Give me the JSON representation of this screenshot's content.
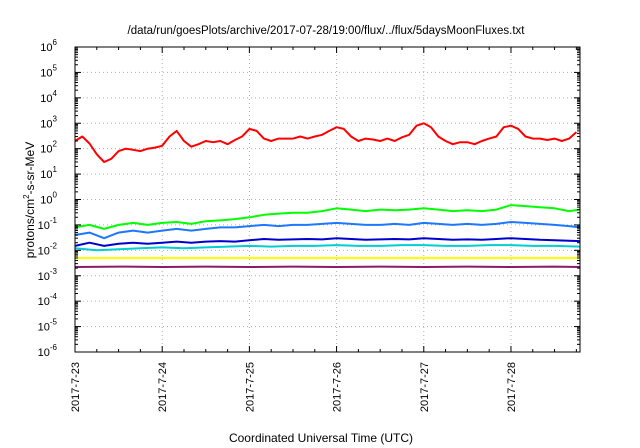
{
  "chart_data": {
    "type": "line",
    "title": "/data/run/goesPlots/archive/2017-07-28/19:00/flux/../flux/5daysMoonFluxes.txt",
    "xlabel": "Coordinated Universal Time (UTC)",
    "ylabel": {
      "prefix": "protons/cm",
      "sup": "2",
      "suffix": "-s-sr-MeV"
    },
    "yscale": "log",
    "ylim": [
      1e-06,
      1000000.0
    ],
    "y_ticks": [
      {
        "base": "10",
        "exp": "-6",
        "value": 1e-06
      },
      {
        "base": "10",
        "exp": "-5",
        "value": 1e-05
      },
      {
        "base": "10",
        "exp": "-4",
        "value": 0.0001
      },
      {
        "base": "10",
        "exp": "-3",
        "value": 0.001
      },
      {
        "base": "10",
        "exp": "-2",
        "value": 0.01
      },
      {
        "base": "10",
        "exp": "-1",
        "value": 0.1
      },
      {
        "base": "10",
        "exp": "0",
        "value": 1
      },
      {
        "base": "10",
        "exp": "1",
        "value": 10
      },
      {
        "base": "10",
        "exp": "2",
        "value": 100
      },
      {
        "base": "10",
        "exp": "3",
        "value": 1000
      },
      {
        "base": "10",
        "exp": "4",
        "value": 10000
      },
      {
        "base": "10",
        "exp": "5",
        "value": 100000
      },
      {
        "base": "10",
        "exp": "6",
        "value": 1000000
      }
    ],
    "x_range": [
      "2017-07-23T00:00",
      "2017-07-28T19:00"
    ],
    "x_ticks": [
      "2017-7-23",
      "2017-7-24",
      "2017-7-25",
      "2017-7-26",
      "2017-7-27",
      "2017-7-28"
    ],
    "grid": true,
    "legend": "none",
    "series": [
      {
        "color": "#ff0000",
        "points": [
          [
            "2017-07-23T00:00",
            200
          ],
          [
            "2017-07-23T02:00",
            300
          ],
          [
            "2017-07-23T04:00",
            160
          ],
          [
            "2017-07-23T06:00",
            60
          ],
          [
            "2017-07-23T08:00",
            30
          ],
          [
            "2017-07-23T10:00",
            40
          ],
          [
            "2017-07-23T12:00",
            80
          ],
          [
            "2017-07-23T14:00",
            100
          ],
          [
            "2017-07-23T16:00",
            90
          ],
          [
            "2017-07-23T18:00",
            80
          ],
          [
            "2017-07-23T20:00",
            100
          ],
          [
            "2017-07-23T22:00",
            110
          ],
          [
            "2017-07-24T00:00",
            130
          ],
          [
            "2017-07-24T02:00",
            300
          ],
          [
            "2017-07-24T04:00",
            500
          ],
          [
            "2017-07-24T06:00",
            200
          ],
          [
            "2017-07-24T08:00",
            120
          ],
          [
            "2017-07-24T10:00",
            150
          ],
          [
            "2017-07-24T12:00",
            200
          ],
          [
            "2017-07-24T14:00",
            180
          ],
          [
            "2017-07-24T16:00",
            200
          ],
          [
            "2017-07-24T18:00",
            150
          ],
          [
            "2017-07-24T20:00",
            220
          ],
          [
            "2017-07-24T22:00",
            300
          ],
          [
            "2017-07-25T00:00",
            600
          ],
          [
            "2017-07-25T02:00",
            500
          ],
          [
            "2017-07-25T04:00",
            250
          ],
          [
            "2017-07-25T06:00",
            200
          ],
          [
            "2017-07-25T08:00",
            250
          ],
          [
            "2017-07-25T10:00",
            250
          ],
          [
            "2017-07-25T12:00",
            250
          ],
          [
            "2017-07-25T14:00",
            300
          ],
          [
            "2017-07-25T16:00",
            250
          ],
          [
            "2017-07-25T18:00",
            300
          ],
          [
            "2017-07-25T20:00",
            350
          ],
          [
            "2017-07-25T22:00",
            500
          ],
          [
            "2017-07-26T00:00",
            700
          ],
          [
            "2017-07-26T02:00",
            600
          ],
          [
            "2017-07-26T04:00",
            300
          ],
          [
            "2017-07-26T06:00",
            200
          ],
          [
            "2017-07-26T08:00",
            250
          ],
          [
            "2017-07-26T10:00",
            230
          ],
          [
            "2017-07-26T12:00",
            200
          ],
          [
            "2017-07-26T14:00",
            250
          ],
          [
            "2017-07-26T16:00",
            200
          ],
          [
            "2017-07-26T18:00",
            280
          ],
          [
            "2017-07-26T20:00",
            350
          ],
          [
            "2017-07-26T22:00",
            800
          ],
          [
            "2017-07-27T00:00",
            1000
          ],
          [
            "2017-07-27T02:00",
            700
          ],
          [
            "2017-07-27T04:00",
            300
          ],
          [
            "2017-07-27T06:00",
            200
          ],
          [
            "2017-07-27T08:00",
            150
          ],
          [
            "2017-07-27T10:00",
            180
          ],
          [
            "2017-07-27T12:00",
            180
          ],
          [
            "2017-07-27T14:00",
            150
          ],
          [
            "2017-07-27T16:00",
            200
          ],
          [
            "2017-07-27T18:00",
            250
          ],
          [
            "2017-07-27T20:00",
            300
          ],
          [
            "2017-07-27T22:00",
            700
          ],
          [
            "2017-07-28T00:00",
            800
          ],
          [
            "2017-07-28T02:00",
            600
          ],
          [
            "2017-07-28T04:00",
            300
          ],
          [
            "2017-07-28T06:00",
            250
          ],
          [
            "2017-07-28T08:00",
            250
          ],
          [
            "2017-07-28T10:00",
            220
          ],
          [
            "2017-07-28T12:00",
            250
          ],
          [
            "2017-07-28T14:00",
            200
          ],
          [
            "2017-07-28T16:00",
            250
          ],
          [
            "2017-07-28T18:00",
            450
          ]
        ]
      },
      {
        "color": "#00ff00",
        "points": [
          [
            "2017-07-23T00:00",
            0.08
          ],
          [
            "2017-07-23T04:00",
            0.1
          ],
          [
            "2017-07-23T08:00",
            0.07
          ],
          [
            "2017-07-23T12:00",
            0.1
          ],
          [
            "2017-07-23T16:00",
            0.12
          ],
          [
            "2017-07-23T20:00",
            0.1
          ],
          [
            "2017-07-24T00:00",
            0.12
          ],
          [
            "2017-07-24T04:00",
            0.13
          ],
          [
            "2017-07-24T08:00",
            0.11
          ],
          [
            "2017-07-24T12:00",
            0.14
          ],
          [
            "2017-07-24T16:00",
            0.15
          ],
          [
            "2017-07-24T20:00",
            0.17
          ],
          [
            "2017-07-25T00:00",
            0.2
          ],
          [
            "2017-07-25T04:00",
            0.25
          ],
          [
            "2017-07-25T08:00",
            0.28
          ],
          [
            "2017-07-25T12:00",
            0.3
          ],
          [
            "2017-07-25T16:00",
            0.3
          ],
          [
            "2017-07-25T20:00",
            0.35
          ],
          [
            "2017-07-26T00:00",
            0.45
          ],
          [
            "2017-07-26T04:00",
            0.4
          ],
          [
            "2017-07-26T08:00",
            0.35
          ],
          [
            "2017-07-26T12:00",
            0.4
          ],
          [
            "2017-07-26T16:00",
            0.38
          ],
          [
            "2017-07-26T20:00",
            0.4
          ],
          [
            "2017-07-27T00:00",
            0.45
          ],
          [
            "2017-07-27T04:00",
            0.4
          ],
          [
            "2017-07-27T08:00",
            0.35
          ],
          [
            "2017-07-27T12:00",
            0.38
          ],
          [
            "2017-07-27T16:00",
            0.35
          ],
          [
            "2017-07-27T20:00",
            0.4
          ],
          [
            "2017-07-28T00:00",
            0.6
          ],
          [
            "2017-07-28T04:00",
            0.55
          ],
          [
            "2017-07-28T08:00",
            0.5
          ],
          [
            "2017-07-28T12:00",
            0.45
          ],
          [
            "2017-07-28T16:00",
            0.35
          ],
          [
            "2017-07-28T19:00",
            0.4
          ]
        ]
      },
      {
        "color": "#1e78ff",
        "points": [
          [
            "2017-07-23T00:00",
            0.04
          ],
          [
            "2017-07-23T04:00",
            0.05
          ],
          [
            "2017-07-23T08:00",
            0.03
          ],
          [
            "2017-07-23T12:00",
            0.05
          ],
          [
            "2017-07-23T16:00",
            0.06
          ],
          [
            "2017-07-23T20:00",
            0.05
          ],
          [
            "2017-07-24T00:00",
            0.06
          ],
          [
            "2017-07-24T04:00",
            0.07
          ],
          [
            "2017-07-24T08:00",
            0.06
          ],
          [
            "2017-07-24T12:00",
            0.07
          ],
          [
            "2017-07-24T16:00",
            0.08
          ],
          [
            "2017-07-24T20:00",
            0.08
          ],
          [
            "2017-07-25T00:00",
            0.09
          ],
          [
            "2017-07-25T04:00",
            0.1
          ],
          [
            "2017-07-25T08:00",
            0.09
          ],
          [
            "2017-07-25T12:00",
            0.1
          ],
          [
            "2017-07-25T16:00",
            0.1
          ],
          [
            "2017-07-25T20:00",
            0.11
          ],
          [
            "2017-07-26T00:00",
            0.12
          ],
          [
            "2017-07-26T04:00",
            0.11
          ],
          [
            "2017-07-26T08:00",
            0.1
          ],
          [
            "2017-07-26T12:00",
            0.1
          ],
          [
            "2017-07-26T16:00",
            0.11
          ],
          [
            "2017-07-26T20:00",
            0.1
          ],
          [
            "2017-07-27T00:00",
            0.12
          ],
          [
            "2017-07-27T04:00",
            0.11
          ],
          [
            "2017-07-27T08:00",
            0.1
          ],
          [
            "2017-07-27T12:00",
            0.11
          ],
          [
            "2017-07-27T16:00",
            0.1
          ],
          [
            "2017-07-27T20:00",
            0.11
          ],
          [
            "2017-07-28T00:00",
            0.13
          ],
          [
            "2017-07-28T04:00",
            0.12
          ],
          [
            "2017-07-28T08:00",
            0.11
          ],
          [
            "2017-07-28T12:00",
            0.1
          ],
          [
            "2017-07-28T16:00",
            0.09
          ],
          [
            "2017-07-28T19:00",
            0.08
          ]
        ]
      },
      {
        "color": "#0000cd",
        "points": [
          [
            "2017-07-23T00:00",
            0.015
          ],
          [
            "2017-07-23T04:00",
            0.02
          ],
          [
            "2017-07-23T08:00",
            0.015
          ],
          [
            "2017-07-23T12:00",
            0.018
          ],
          [
            "2017-07-23T16:00",
            0.02
          ],
          [
            "2017-07-23T20:00",
            0.018
          ],
          [
            "2017-07-24T00:00",
            0.02
          ],
          [
            "2017-07-24T04:00",
            0.022
          ],
          [
            "2017-07-24T08:00",
            0.02
          ],
          [
            "2017-07-24T12:00",
            0.022
          ],
          [
            "2017-07-24T16:00",
            0.023
          ],
          [
            "2017-07-24T20:00",
            0.022
          ],
          [
            "2017-07-25T00:00",
            0.025
          ],
          [
            "2017-07-25T04:00",
            0.028
          ],
          [
            "2017-07-25T08:00",
            0.026
          ],
          [
            "2017-07-25T12:00",
            0.027
          ],
          [
            "2017-07-25T16:00",
            0.028
          ],
          [
            "2017-07-25T20:00",
            0.027
          ],
          [
            "2017-07-26T00:00",
            0.03
          ],
          [
            "2017-07-26T04:00",
            0.028
          ],
          [
            "2017-07-26T08:00",
            0.026
          ],
          [
            "2017-07-26T12:00",
            0.027
          ],
          [
            "2017-07-26T16:00",
            0.028
          ],
          [
            "2017-07-26T20:00",
            0.027
          ],
          [
            "2017-07-27T00:00",
            0.03
          ],
          [
            "2017-07-27T04:00",
            0.028
          ],
          [
            "2017-07-27T08:00",
            0.026
          ],
          [
            "2017-07-27T12:00",
            0.027
          ],
          [
            "2017-07-27T16:00",
            0.026
          ],
          [
            "2017-07-27T20:00",
            0.028
          ],
          [
            "2017-07-28T00:00",
            0.03
          ],
          [
            "2017-07-28T04:00",
            0.028
          ],
          [
            "2017-07-28T08:00",
            0.026
          ],
          [
            "2017-07-28T12:00",
            0.025
          ],
          [
            "2017-07-28T16:00",
            0.024
          ],
          [
            "2017-07-28T19:00",
            0.023
          ]
        ]
      },
      {
        "color": "#00ced1",
        "points": [
          [
            "2017-07-23T00:00",
            0.012
          ],
          [
            "2017-07-23T06:00",
            0.01
          ],
          [
            "2017-07-23T12:00",
            0.011
          ],
          [
            "2017-07-23T18:00",
            0.012
          ],
          [
            "2017-07-24T00:00",
            0.013
          ],
          [
            "2017-07-24T06:00",
            0.012
          ],
          [
            "2017-07-24T12:00",
            0.013
          ],
          [
            "2017-07-24T18:00",
            0.014
          ],
          [
            "2017-07-25T00:00",
            0.015
          ],
          [
            "2017-07-25T06:00",
            0.014
          ],
          [
            "2017-07-25T12:00",
            0.015
          ],
          [
            "2017-07-25T18:00",
            0.015
          ],
          [
            "2017-07-26T00:00",
            0.016
          ],
          [
            "2017-07-26T06:00",
            0.015
          ],
          [
            "2017-07-26T12:00",
            0.015
          ],
          [
            "2017-07-26T18:00",
            0.016
          ],
          [
            "2017-07-27T00:00",
            0.016
          ],
          [
            "2017-07-27T06:00",
            0.015
          ],
          [
            "2017-07-27T12:00",
            0.015
          ],
          [
            "2017-07-27T18:00",
            0.016
          ],
          [
            "2017-07-28T00:00",
            0.016
          ],
          [
            "2017-07-28T06:00",
            0.015
          ],
          [
            "2017-07-28T12:00",
            0.015
          ],
          [
            "2017-07-28T19:00",
            0.014
          ]
        ]
      },
      {
        "color": "#ffff00",
        "points": [
          [
            "2017-07-23T00:00",
            0.005
          ],
          [
            "2017-07-24T00:00",
            0.005
          ],
          [
            "2017-07-25T00:00",
            0.005
          ],
          [
            "2017-07-26T00:00",
            0.005
          ],
          [
            "2017-07-27T00:00",
            0.005
          ],
          [
            "2017-07-28T00:00",
            0.005
          ],
          [
            "2017-07-28T19:00",
            0.005
          ]
        ]
      },
      {
        "color": "#8b1a6b",
        "points": [
          [
            "2017-07-23T00:00",
            0.0022
          ],
          [
            "2017-07-23T12:00",
            0.0023
          ],
          [
            "2017-07-24T00:00",
            0.0022
          ],
          [
            "2017-07-24T12:00",
            0.0023
          ],
          [
            "2017-07-25T00:00",
            0.0022
          ],
          [
            "2017-07-25T12:00",
            0.0023
          ],
          [
            "2017-07-26T00:00",
            0.0022
          ],
          [
            "2017-07-26T12:00",
            0.0023
          ],
          [
            "2017-07-27T00:00",
            0.0022
          ],
          [
            "2017-07-27T12:00",
            0.0023
          ],
          [
            "2017-07-28T00:00",
            0.0022
          ],
          [
            "2017-07-28T12:00",
            0.0023
          ],
          [
            "2017-07-28T19:00",
            0.0022
          ]
        ]
      }
    ]
  }
}
